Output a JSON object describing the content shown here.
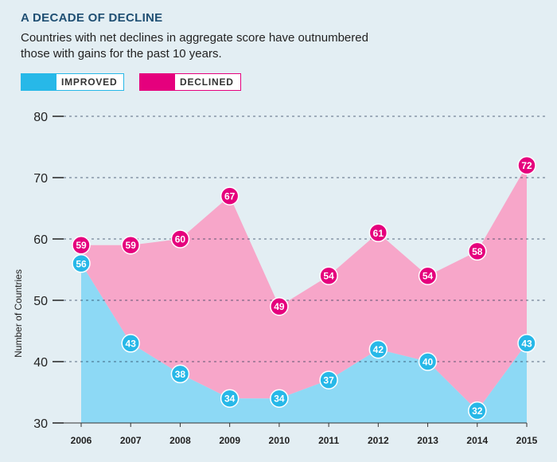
{
  "header": {
    "title": "A DECADE OF DECLINE",
    "subtitle": "Countries with net declines in aggregate score have outnumbered those with gains for the past 10 years."
  },
  "legend": {
    "improved_label": "IMPROVED",
    "declined_label": "DECLINED"
  },
  "colors": {
    "background": "#e3eef3",
    "improved_fill": "#8dd9f5",
    "improved_marker": "#27b8e8",
    "declined_fill": "#f7a6c9",
    "declined_marker": "#e5007d",
    "grid": "#1f3550"
  },
  "chart_data": {
    "type": "area",
    "title": "A DECADE OF DECLINE",
    "subtitle": "Countries with net declines in aggregate score have outnumbered those with gains for the past 10 years.",
    "ylabel": "Number of Countries",
    "xlabel": "",
    "x": [
      "2006",
      "2007",
      "2008",
      "2009",
      "2010",
      "2011",
      "2012",
      "2013",
      "2014",
      "2015"
    ],
    "ylim": [
      30,
      80
    ],
    "yticks": [
      30,
      40,
      50,
      60,
      70,
      80
    ],
    "grid": "dashed horizontal",
    "legend_position": "top-left",
    "series": [
      {
        "name": "IMPROVED",
        "values": [
          56,
          43,
          38,
          34,
          34,
          37,
          42,
          40,
          32,
          43
        ]
      },
      {
        "name": "DECLINED",
        "values": [
          59,
          59,
          60,
          67,
          49,
          54,
          61,
          54,
          58,
          72
        ]
      }
    ]
  }
}
